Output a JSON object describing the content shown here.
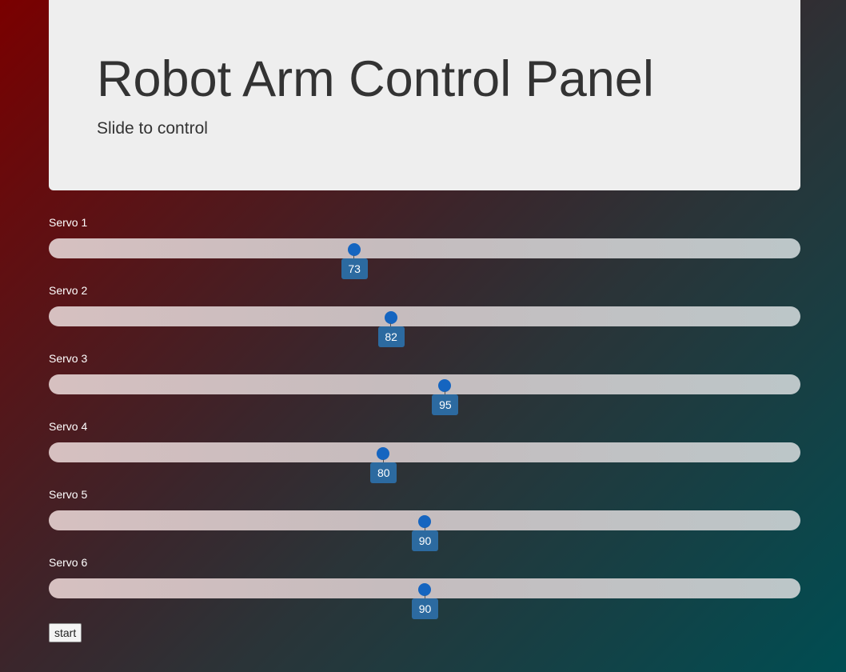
{
  "header": {
    "title": "Robot Arm Control Panel",
    "subtitle": "Slide to control"
  },
  "servos": [
    {
      "label": "Servo 1",
      "value": "73",
      "fraction": 0.406
    },
    {
      "label": "Servo 2",
      "value": "82",
      "fraction": 0.455
    },
    {
      "label": "Servo 3",
      "value": "95",
      "fraction": 0.527
    },
    {
      "label": "Servo 4",
      "value": "80",
      "fraction": 0.445
    },
    {
      "label": "Servo 5",
      "value": "90",
      "fraction": 0.5
    },
    {
      "label": "Servo 6",
      "value": "90",
      "fraction": 0.5
    }
  ],
  "start_button": {
    "label": "start"
  },
  "colors": {
    "handle": "#1565c0",
    "tooltip": "#2c6aa0",
    "panel": "#eeeeee"
  }
}
